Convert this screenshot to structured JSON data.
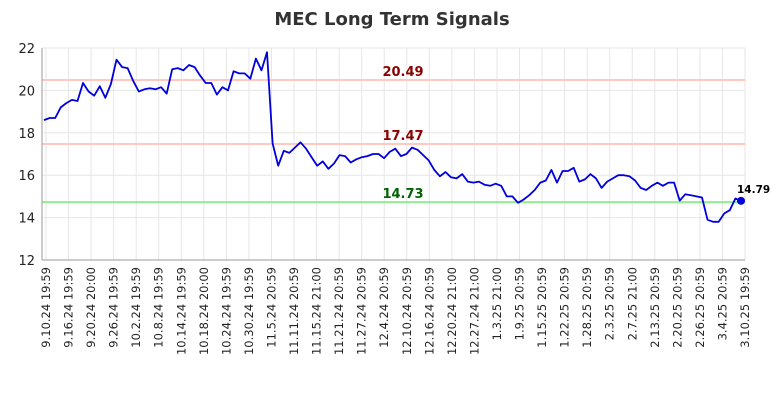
{
  "chart_data": {
    "type": "line",
    "title": "MEC Long Term Signals",
    "xlabel": "",
    "ylabel": "",
    "ylim": [
      12,
      22
    ],
    "yticks": [
      "12",
      "14",
      "16",
      "18",
      "20",
      "22"
    ],
    "grid": true,
    "xtick_labels": [
      "9.10.24 19:59",
      "9.16.24 19:59",
      "9.20.24 20:00",
      "9.26.24 19:59",
      "10.2.24 19:59",
      "10.8.24 19:59",
      "10.14.24 19:59",
      "10.18.24 20:00",
      "10.24.24 19:59",
      "10.30.24 19:59",
      "11.5.24 20:59",
      "11.11.24 20:59",
      "11.15.24 21:00",
      "11.21.24 20:59",
      "11.27.24 20:59",
      "12.4.24 20:59",
      "12.10.24 20:59",
      "12.16.24 20:59",
      "12.20.24 21:00",
      "12.27.24 21:00",
      "1.3.25 21:00",
      "1.9.25 20:59",
      "1.15.25 20:59",
      "1.22.25 20:59",
      "1.28.25 20:59",
      "2.3.25 20:59",
      "2.7.25 21:00",
      "2.13.25 20:59",
      "2.20.25 20:59",
      "2.26.25 20:59",
      "3.4.25 20:59",
      "3.10.25 19:59"
    ],
    "series": [
      {
        "color": "#0000dd",
        "values": [
          18.6,
          18.7,
          18.7,
          19.2,
          19.4,
          19.55,
          19.5,
          20.35,
          19.95,
          19.75,
          20.2,
          19.65,
          20.3,
          21.45,
          21.1,
          21.05,
          20.45,
          19.95,
          20.05,
          20.1,
          20.05,
          20.15,
          19.85,
          21.0,
          21.05,
          20.95,
          21.2,
          21.1,
          20.7,
          20.35,
          20.35,
          19.8,
          20.15,
          20.0,
          20.9,
          20.8,
          20.8,
          20.55,
          21.5,
          20.95,
          21.8,
          17.5,
          16.45,
          17.15,
          17.05,
          17.3,
          17.55,
          17.25,
          16.85,
          16.45,
          16.65,
          16.3,
          16.55,
          16.95,
          16.9,
          16.6,
          16.75,
          16.85,
          16.9,
          17.0,
          17.0,
          16.8,
          17.1,
          17.25,
          16.9,
          17.0,
          17.3,
          17.2,
          16.95,
          16.7,
          16.25,
          15.95,
          16.15,
          15.9,
          15.85,
          16.05,
          15.7,
          15.65,
          15.7,
          15.55,
          15.5,
          15.6,
          15.5,
          15.0,
          15.0,
          14.7,
          14.85,
          15.05,
          15.3,
          15.65,
          15.75,
          16.25,
          15.65,
          16.2,
          16.2,
          16.35,
          15.7,
          15.8,
          16.05,
          15.85,
          15.4,
          15.7,
          15.85,
          16.0,
          16.0,
          15.95,
          15.75,
          15.4,
          15.3,
          15.5,
          15.65,
          15.5,
          15.65,
          15.65,
          14.8,
          15.1,
          15.05,
          15.0,
          14.95,
          13.9,
          13.8,
          13.8,
          14.2,
          14.35,
          14.9,
          14.79
        ]
      }
    ],
    "levels": [
      {
        "value": 20.49,
        "label": "20.49",
        "line_color": "#ffc8c0",
        "text_color": "#8b0000"
      },
      {
        "value": 17.47,
        "label": "17.47",
        "line_color": "#ffc8c0",
        "text_color": "#8b0000"
      },
      {
        "value": 14.73,
        "label": "14.73",
        "line_color": "#90ee90",
        "text_color": "#006400"
      }
    ],
    "last_point_label": "14.79"
  }
}
